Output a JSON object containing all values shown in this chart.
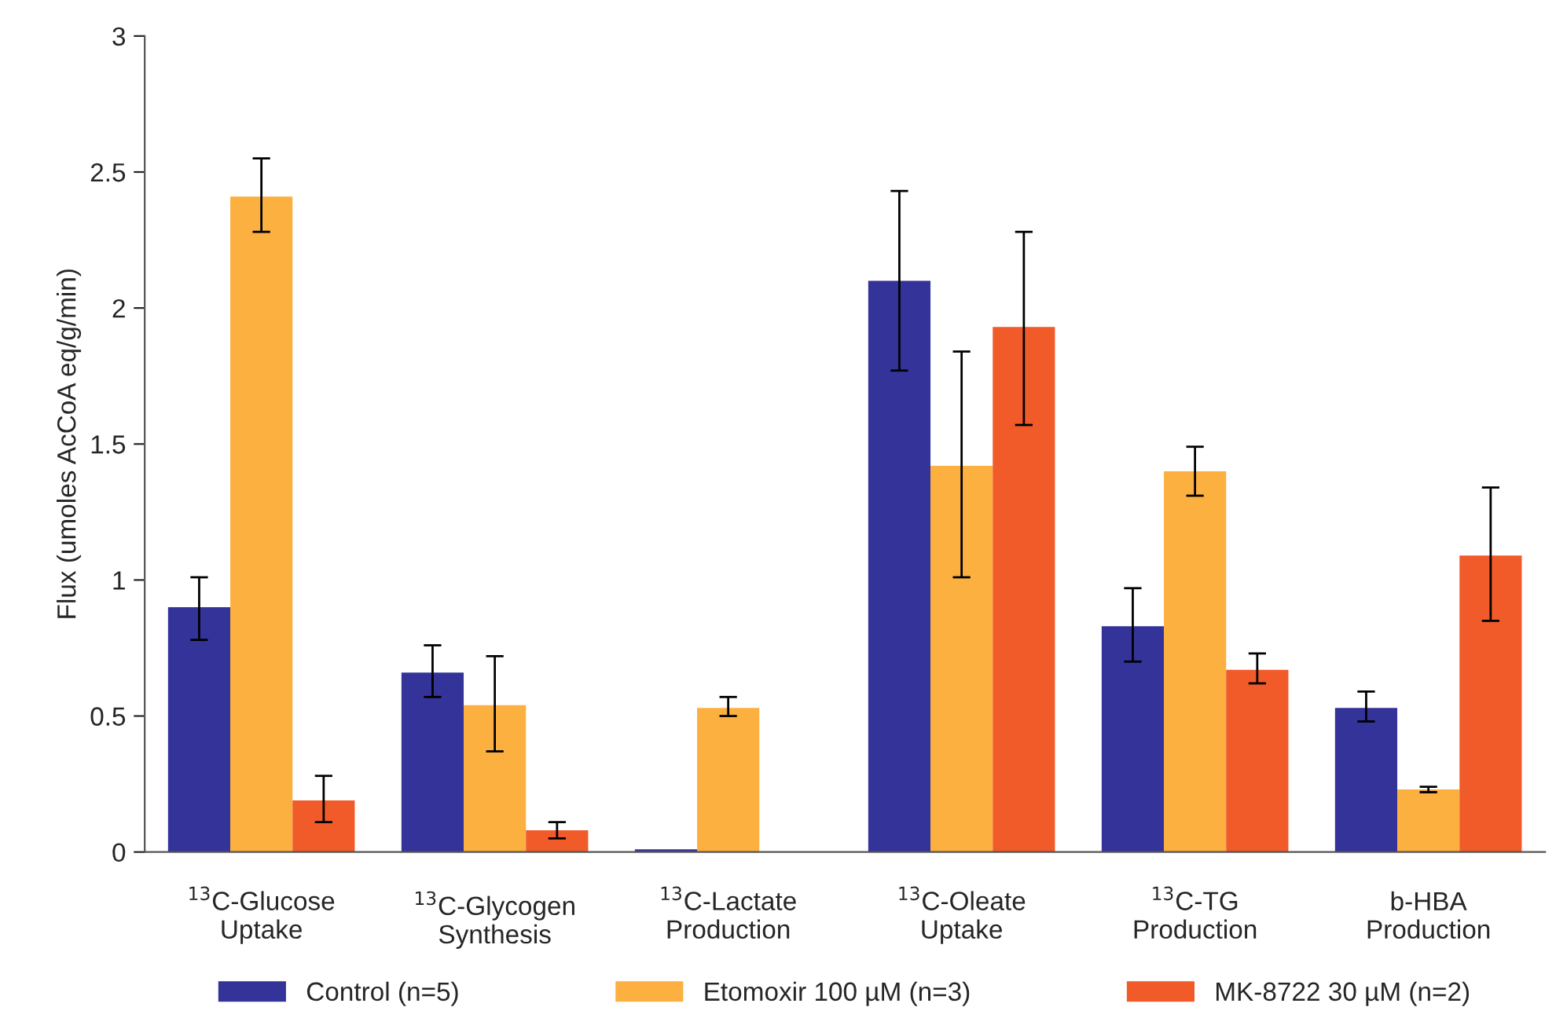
{
  "chart_data": {
    "type": "bar",
    "ylabel": "Flux (umoles AcCoA eq/g/min)",
    "categories": [
      "$^{13}$C-Glucose\nUptake",
      "$^{13}$C-Glycogen\nSynthesis",
      "$^{13}$C-Lactate\nProduction",
      "$^{13}$C-Oleate\nUptake",
      "$^{13}$C-TG\nProduction",
      "b-HBA\nProduction"
    ],
    "series": [
      {
        "name": "Control (n=5)",
        "color": "#333399",
        "values": [
          0.9,
          0.66,
          0.01,
          2.1,
          0.83,
          0.53
        ],
        "errors": [
          [
            0.78,
            1.01
          ],
          [
            0.57,
            0.76
          ],
          null,
          [
            1.77,
            2.43
          ],
          [
            0.7,
            0.97
          ],
          [
            0.48,
            0.59
          ]
        ]
      },
      {
        "name": "Etomoxir 100 µM (n=3)",
        "color": "#fbb040",
        "values": [
          2.41,
          0.54,
          0.53,
          1.42,
          1.4,
          0.23
        ],
        "errors": [
          [
            2.28,
            2.55
          ],
          [
            0.37,
            0.72
          ],
          [
            0.5,
            0.57
          ],
          [
            1.01,
            1.84
          ],
          [
            1.31,
            1.49
          ],
          [
            0.22,
            0.24
          ]
        ]
      },
      {
        "name": "MK-8722 30 µM (n=2)",
        "color": "#f15a29",
        "values": [
          0.19,
          0.08,
          null,
          1.93,
          0.67,
          1.09
        ],
        "errors": [
          [
            0.11,
            0.28
          ],
          [
            0.05,
            0.11
          ],
          null,
          [
            1.57,
            2.28
          ],
          [
            0.62,
            0.73
          ],
          [
            0.85,
            1.34
          ]
        ]
      }
    ],
    "ylim": [
      0,
      3
    ],
    "yticks": [
      0,
      0.5,
      1,
      1.5,
      2,
      2.5,
      3
    ],
    "grid": false,
    "legend": "bottom"
  }
}
